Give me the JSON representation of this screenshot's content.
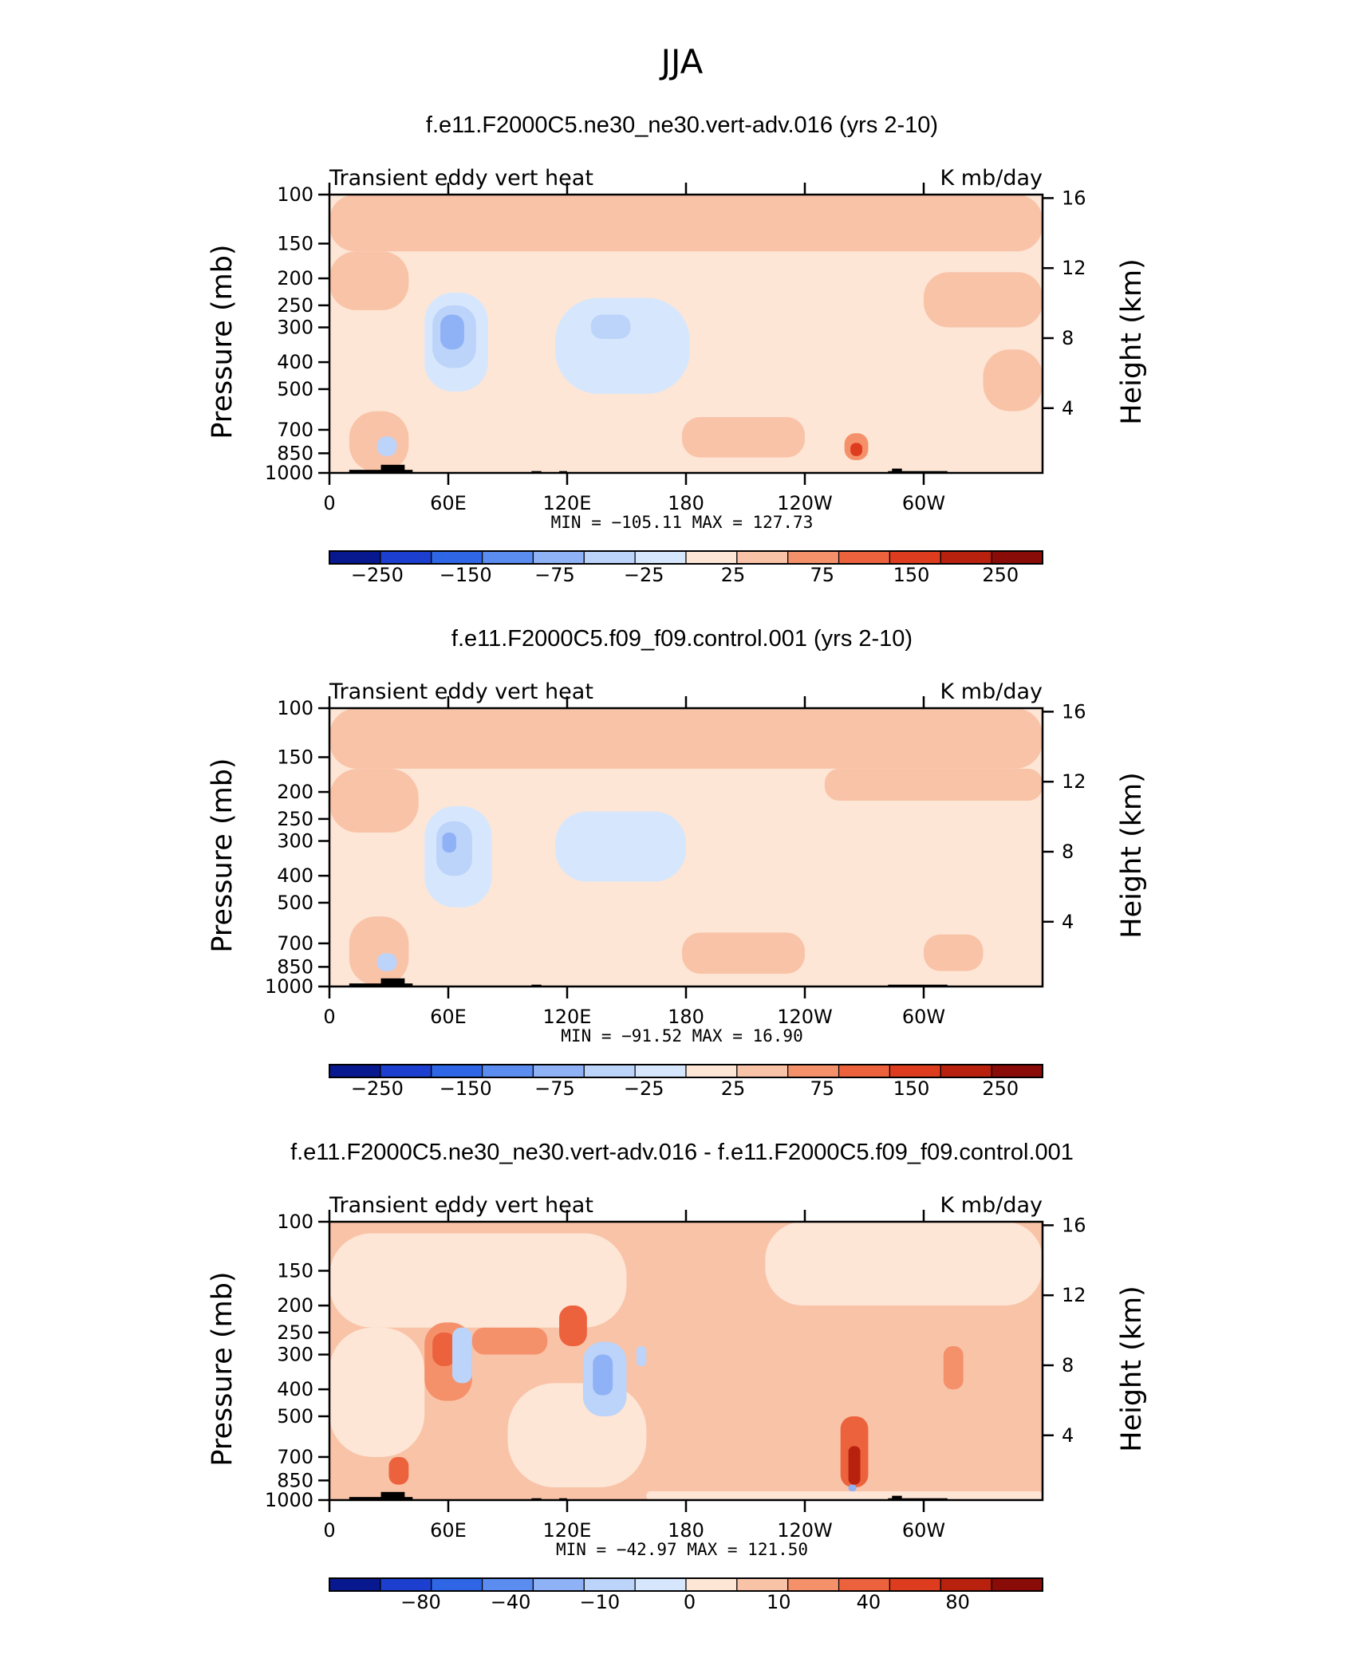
{
  "figure": {
    "title": "JJA",
    "colors": {
      "ink": "#000000",
      "near_zero_neg": "#d6e7fd",
      "near_zero_pos": "#fde6d6",
      "terrain": "#000000"
    }
  },
  "chart_data": [
    {
      "type": "heatmap",
      "title": "f.e11.F2000C5.ne30_ne30.vert-adv.016 (yrs 2-10)",
      "left_label": "Transient eddy vert heat",
      "right_label": "K mb/day",
      "ylabel": "Pressure (mb)",
      "ylabel2": "Height (km)",
      "x_ticks": [
        "0",
        "60E",
        "120E",
        "180",
        "120W",
        "60W"
      ],
      "x_tick_lon": [
        0,
        60,
        120,
        180,
        240,
        300
      ],
      "xlim": [
        0,
        360
      ],
      "y_ticks": [
        "100",
        "150",
        "200",
        "250",
        "300",
        "400",
        "500",
        "700",
        "850",
        "1000"
      ],
      "y_tick_p": [
        100,
        150,
        200,
        250,
        300,
        400,
        500,
        700,
        850,
        1000
      ],
      "ylim": [
        1000,
        100
      ],
      "y2_ticks": [
        "4",
        "8",
        "12",
        "16"
      ],
      "y2_tick_km": [
        4,
        8,
        12,
        16
      ],
      "stats": "MIN = −105.11   MAX = 127.73",
      "colorbar": {
        "labels": [
          "−250",
          "−150",
          "−75",
          "−25",
          "25",
          "75",
          "150",
          "250"
        ],
        "colors": [
          "#08188e",
          "#1c3fd0",
          "#2e66e6",
          "#5b8cef",
          "#8fb1f5",
          "#bcd3fa",
          "#d6e7fd",
          "#fde6d6",
          "#f9c3a8",
          "#f4916b",
          "#ec623d",
          "#dd3d1e",
          "#b9210f",
          "#8a0c08"
        ]
      },
      "background_class": 7,
      "regions": [
        {
          "lon": [
            0,
            360
          ],
          "p": [
            100,
            160
          ],
          "class": 8
        },
        {
          "lon": [
            0,
            40
          ],
          "p": [
            160,
            260
          ],
          "class": 8
        },
        {
          "lon": [
            300,
            360
          ],
          "p": [
            190,
            300
          ],
          "class": 8
        },
        {
          "lon": [
            10,
            40
          ],
          "p": [
            600,
            990
          ],
          "class": 8
        },
        {
          "lon": [
            330,
            360
          ],
          "p": [
            360,
            600
          ],
          "class": 8
        },
        {
          "lon": [
            178,
            240
          ],
          "p": [
            630,
            880
          ],
          "class": 8
        },
        {
          "lon": [
            48,
            80
          ],
          "p": [
            225,
            510
          ],
          "class": 6
        },
        {
          "lon": [
            52,
            74
          ],
          "p": [
            250,
            420
          ],
          "class": 5
        },
        {
          "lon": [
            56,
            68
          ],
          "p": [
            270,
            360
          ],
          "class": 4
        },
        {
          "lon": [
            114,
            182
          ],
          "p": [
            235,
            520
          ],
          "class": 6
        },
        {
          "lon": [
            132,
            152
          ],
          "p": [
            270,
            330
          ],
          "class": 5
        },
        {
          "lon": [
            24,
            34
          ],
          "p": [
            740,
            870
          ],
          "class": 5
        },
        {
          "lon": [
            260,
            272
          ],
          "p": [
            720,
            900
          ],
          "class": 9
        },
        {
          "lon": [
            263,
            269
          ],
          "p": [
            780,
            870
          ],
          "class": 11
        }
      ],
      "terrain": [
        {
          "lon": [
            10,
            42
          ],
          "p": [
            975,
            1000
          ]
        },
        {
          "lon": [
            26,
            38
          ],
          "p": [
            935,
            1000
          ]
        },
        {
          "lon": [
            102,
            107
          ],
          "p": [
            985,
            1000
          ]
        },
        {
          "lon": [
            116,
            120
          ],
          "p": [
            985,
            1000
          ]
        },
        {
          "lon": [
            282,
            312
          ],
          "p": [
            985,
            1000
          ]
        },
        {
          "lon": [
            284,
            289
          ],
          "p": [
            965,
            1000
          ]
        }
      ]
    },
    {
      "type": "heatmap",
      "title": "f.e11.F2000C5.f09_f09.control.001 (yrs 2-10)",
      "left_label": "Transient eddy vert heat",
      "right_label": "K mb/day",
      "ylabel": "Pressure (mb)",
      "ylabel2": "Height (km)",
      "x_ticks": [
        "0",
        "60E",
        "120E",
        "180",
        "120W",
        "60W"
      ],
      "x_tick_lon": [
        0,
        60,
        120,
        180,
        240,
        300
      ],
      "xlim": [
        0,
        360
      ],
      "y_ticks": [
        "100",
        "150",
        "200",
        "250",
        "300",
        "400",
        "500",
        "700",
        "850",
        "1000"
      ],
      "y_tick_p": [
        100,
        150,
        200,
        250,
        300,
        400,
        500,
        700,
        850,
        1000
      ],
      "ylim": [
        1000,
        100
      ],
      "y2_ticks": [
        "4",
        "8",
        "12",
        "16"
      ],
      "y2_tick_km": [
        4,
        8,
        12,
        16
      ],
      "stats": "MIN = −91.52   MAX =   16.90",
      "colorbar": {
        "labels": [
          "−250",
          "−150",
          "−75",
          "−25",
          "25",
          "75",
          "150",
          "250"
        ],
        "colors": [
          "#08188e",
          "#1c3fd0",
          "#2e66e6",
          "#5b8cef",
          "#8fb1f5",
          "#bcd3fa",
          "#d6e7fd",
          "#fde6d6",
          "#f9c3a8",
          "#f4916b",
          "#ec623d",
          "#dd3d1e",
          "#b9210f",
          "#8a0c08"
        ]
      },
      "background_class": 7,
      "regions": [
        {
          "lon": [
            0,
            360
          ],
          "p": [
            100,
            165
          ],
          "class": 8
        },
        {
          "lon": [
            0,
            45
          ],
          "p": [
            165,
            280
          ],
          "class": 8
        },
        {
          "lon": [
            250,
            360
          ],
          "p": [
            165,
            215
          ],
          "class": 8
        },
        {
          "lon": [
            10,
            40
          ],
          "p": [
            560,
            990
          ],
          "class": 8
        },
        {
          "lon": [
            178,
            240
          ],
          "p": [
            640,
            900
          ],
          "class": 8
        },
        {
          "lon": [
            300,
            330
          ],
          "p": [
            650,
            880
          ],
          "class": 8
        },
        {
          "lon": [
            48,
            82
          ],
          "p": [
            225,
            520
          ],
          "class": 6
        },
        {
          "lon": [
            54,
            72
          ],
          "p": [
            255,
            400
          ],
          "class": 5
        },
        {
          "lon": [
            57,
            64
          ],
          "p": [
            280,
            330
          ],
          "class": 4
        },
        {
          "lon": [
            114,
            180
          ],
          "p": [
            235,
            420
          ],
          "class": 6
        },
        {
          "lon": [
            24,
            34
          ],
          "p": [
            760,
            880
          ],
          "class": 5
        }
      ],
      "terrain": [
        {
          "lon": [
            10,
            42
          ],
          "p": [
            975,
            1000
          ]
        },
        {
          "lon": [
            26,
            38
          ],
          "p": [
            935,
            1000
          ]
        },
        {
          "lon": [
            102,
            107
          ],
          "p": [
            985,
            1000
          ]
        },
        {
          "lon": [
            282,
            312
          ],
          "p": [
            985,
            1000
          ]
        }
      ]
    },
    {
      "type": "heatmap",
      "title": "f.e11.F2000C5.ne30_ne30.vert-adv.016 - f.e11.F2000C5.f09_f09.control.001",
      "left_label": "Transient eddy vert heat",
      "right_label": "K mb/day",
      "ylabel": "Pressure (mb)",
      "ylabel2": "Height (km)",
      "x_ticks": [
        "0",
        "60E",
        "120E",
        "180",
        "120W",
        "60W"
      ],
      "x_tick_lon": [
        0,
        60,
        120,
        180,
        240,
        300
      ],
      "xlim": [
        0,
        360
      ],
      "y_ticks": [
        "100",
        "150",
        "200",
        "250",
        "300",
        "400",
        "500",
        "700",
        "850",
        "1000"
      ],
      "y_tick_p": [
        100,
        150,
        200,
        250,
        300,
        400,
        500,
        700,
        850,
        1000
      ],
      "ylim": [
        1000,
        100
      ],
      "y2_ticks": [
        "4",
        "8",
        "12",
        "16"
      ],
      "y2_tick_km": [
        4,
        8,
        12,
        16
      ],
      "stats": "MIN = −42.97   MAX = 121.50",
      "colorbar": {
        "labels": [
          "−80",
          "−40",
          "−10",
          "0",
          "10",
          "40",
          "80"
        ],
        "colors": [
          "#08188e",
          "#1c3fd0",
          "#2e66e6",
          "#5b8cef",
          "#8fb1f5",
          "#bcd3fa",
          "#d6e7fd",
          "#fde6d6",
          "#f9c3a8",
          "#f4916b",
          "#ec623d",
          "#dd3d1e",
          "#b9210f",
          "#8a0c08"
        ]
      },
      "background_class": 8,
      "regions": [
        {
          "lon": [
            0,
            150
          ],
          "p": [
            110,
            240
          ],
          "class": 7
        },
        {
          "lon": [
            220,
            360
          ],
          "p": [
            100,
            200
          ],
          "class": 7
        },
        {
          "lon": [
            0,
            48
          ],
          "p": [
            240,
            700
          ],
          "class": 7
        },
        {
          "lon": [
            90,
            160
          ],
          "p": [
            380,
            900
          ],
          "class": 7
        },
        {
          "lon": [
            160,
            360
          ],
          "p": [
            930,
            1000
          ],
          "class": 7
        },
        {
          "lon": [
            48,
            72
          ],
          "p": [
            230,
            440
          ],
          "class": 9
        },
        {
          "lon": [
            52,
            64
          ],
          "p": [
            250,
            330
          ],
          "class": 10
        },
        {
          "lon": [
            62,
            72
          ],
          "p": [
            240,
            380
          ],
          "class": 5
        },
        {
          "lon": [
            72,
            110
          ],
          "p": [
            240,
            300
          ],
          "class": 9
        },
        {
          "lon": [
            116,
            130
          ],
          "p": [
            200,
            280
          ],
          "class": 10
        },
        {
          "lon": [
            128,
            150
          ],
          "p": [
            270,
            500
          ],
          "class": 5
        },
        {
          "lon": [
            133,
            143
          ],
          "p": [
            300,
            420
          ],
          "class": 4
        },
        {
          "lon": [
            155,
            160
          ],
          "p": [
            280,
            330
          ],
          "class": 5
        },
        {
          "lon": [
            310,
            320
          ],
          "p": [
            280,
            400
          ],
          "class": 9
        },
        {
          "lon": [
            30,
            40
          ],
          "p": [
            700,
            880
          ],
          "class": 10
        },
        {
          "lon": [
            258,
            272
          ],
          "p": [
            500,
            900
          ],
          "class": 10
        },
        {
          "lon": [
            262,
            268
          ],
          "p": [
            640,
            880
          ],
          "class": 12
        },
        {
          "lon": [
            262,
            266
          ],
          "p": [
            880,
            930
          ],
          "class": 4
        }
      ],
      "terrain": [
        {
          "lon": [
            10,
            42
          ],
          "p": [
            975,
            1000
          ]
        },
        {
          "lon": [
            26,
            38
          ],
          "p": [
            935,
            1000
          ]
        },
        {
          "lon": [
            102,
            107
          ],
          "p": [
            985,
            1000
          ]
        },
        {
          "lon": [
            116,
            120
          ],
          "p": [
            985,
            1000
          ]
        },
        {
          "lon": [
            282,
            312
          ],
          "p": [
            985,
            1000
          ]
        },
        {
          "lon": [
            284,
            289
          ],
          "p": [
            965,
            1000
          ]
        }
      ]
    }
  ]
}
